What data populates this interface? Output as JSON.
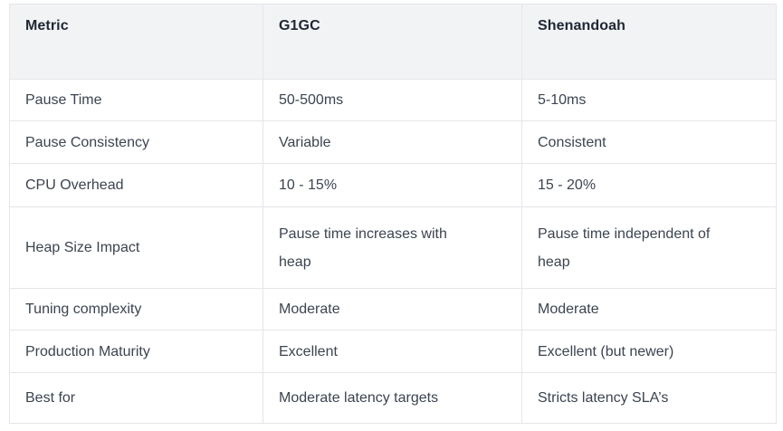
{
  "colors": {
    "header_bg": "#f2f3f5",
    "border": "#e4e6ea",
    "header_text": "#1f2733",
    "body_text": "#3c4450",
    "page_bg": "#ffffff"
  },
  "table": {
    "columns": [
      "Metric",
      "G1GC",
      "Shenandoah"
    ],
    "rows": [
      {
        "metric": "Pause Time",
        "g1gc": "50-500ms",
        "shenandoah": "5-10ms"
      },
      {
        "metric": "Pause Consistency",
        "g1gc": "Variable",
        "shenandoah": "Consistent"
      },
      {
        "metric": "CPU Overhead",
        "g1gc": "10 - 15%",
        "shenandoah": "15 - 20%"
      },
      {
        "metric": "Heap Size Impact",
        "g1gc": "Pause time increases with\nheap",
        "shenandoah": "Pause time independent of\nheap"
      },
      {
        "metric": "Tuning complexity",
        "g1gc": "Moderate",
        "shenandoah": "Moderate"
      },
      {
        "metric": "Production Maturity",
        "g1gc": "Excellent",
        "shenandoah": "Excellent (but newer)"
      },
      {
        "metric": "Best for",
        "g1gc": "Moderate latency targets",
        "shenandoah": "Stricts latency SLA’s"
      }
    ]
  },
  "chart_data": {
    "type": "table",
    "title": "",
    "columns": [
      "Metric",
      "G1GC",
      "Shenandoah"
    ],
    "rows": [
      [
        "Pause Time",
        "50-500ms",
        "5-10ms"
      ],
      [
        "Pause Consistency",
        "Variable",
        "Consistent"
      ],
      [
        "CPU Overhead",
        "10 - 15%",
        "15 - 20%"
      ],
      [
        "Heap Size Impact",
        "Pause time increases with heap",
        "Pause time independent of heap"
      ],
      [
        "Tuning complexity",
        "Moderate",
        "Moderate"
      ],
      [
        "Production Maturity",
        "Excellent",
        "Excellent (but newer)"
      ],
      [
        "Best for",
        "Moderate latency targets",
        "Stricts latency SLA’s"
      ]
    ]
  }
}
